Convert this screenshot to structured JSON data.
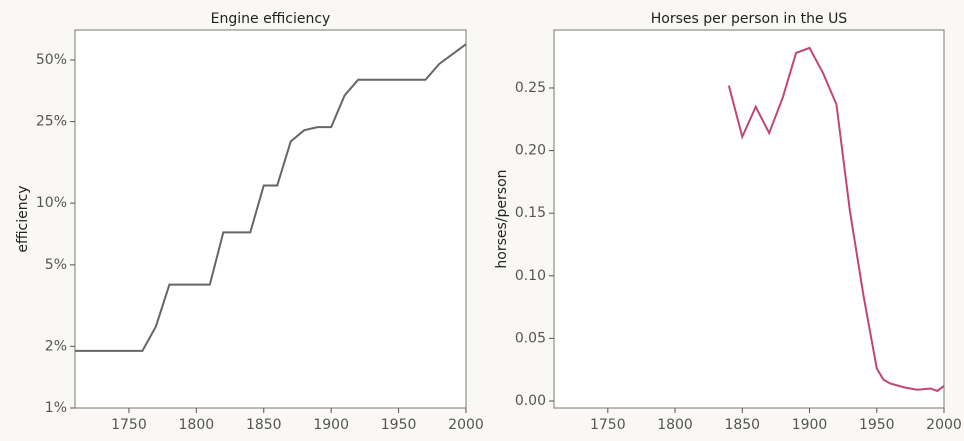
{
  "chart_data": [
    {
      "type": "line",
      "title": "Engine efficiency",
      "ylabel": "efficiency",
      "log_y": true,
      "x": [
        1710,
        1760,
        1770,
        1780,
        1810,
        1820,
        1840,
        1850,
        1860,
        1870,
        1880,
        1890,
        1900,
        1910,
        1920,
        1970,
        1980,
        2000
      ],
      "series": [
        {
          "name": "efficiency",
          "color": "#666666",
          "values": [
            1.9,
            1.9,
            2.5,
            4,
            4,
            7.2,
            7.2,
            12.2,
            12.2,
            20,
            22.7,
            23.5,
            23.5,
            33.6,
            40,
            40,
            47.7,
            59.7
          ]
        }
      ],
      "xlim": [
        1710,
        2000
      ],
      "xticks": [
        1750,
        1800,
        1850,
        1900,
        1950,
        2000
      ],
      "ylim": [
        1,
        70
      ],
      "yticks": [
        {
          "value": 1,
          "label": "1%"
        },
        {
          "value": 2,
          "label": "2%"
        },
        {
          "value": 5,
          "label": "5%"
        },
        {
          "value": 10,
          "label": "10%"
        },
        {
          "value": 25,
          "label": "25%"
        },
        {
          "value": 50,
          "label": "50%"
        }
      ]
    },
    {
      "type": "line",
      "title": "Horses per person in the US",
      "ylabel": "horses/person",
      "log_y": false,
      "x": [
        1840,
        1850,
        1860,
        1870,
        1880,
        1890,
        1900,
        1910,
        1920,
        1930,
        1940,
        1950,
        1955,
        1960,
        1970,
        1980,
        1990,
        1995,
        2000
      ],
      "series": [
        {
          "name": "horses/person",
          "color": "#c0467a",
          "values": [
            0.252,
            0.211,
            0.235,
            0.214,
            0.242,
            0.278,
            0.282,
            0.262,
            0.237,
            0.152,
            0.085,
            0.026,
            0.017,
            0.014,
            0.011,
            0.009,
            0.01,
            0.008,
            0.012
          ]
        }
      ],
      "xlim": [
        1710,
        2000
      ],
      "xticks": [
        1750,
        1800,
        1850,
        1900,
        1950,
        2000
      ],
      "ylim": [
        -0.0056,
        0.2963
      ],
      "yticks": [
        {
          "value": 0,
          "label": "0.00"
        },
        {
          "value": 0.05,
          "label": "0.05"
        },
        {
          "value": 0.1,
          "label": "0.10"
        },
        {
          "value": 0.15,
          "label": "0.15"
        },
        {
          "value": 0.2,
          "label": "0.20"
        },
        {
          "value": 0.25,
          "label": "0.25"
        }
      ]
    }
  ]
}
